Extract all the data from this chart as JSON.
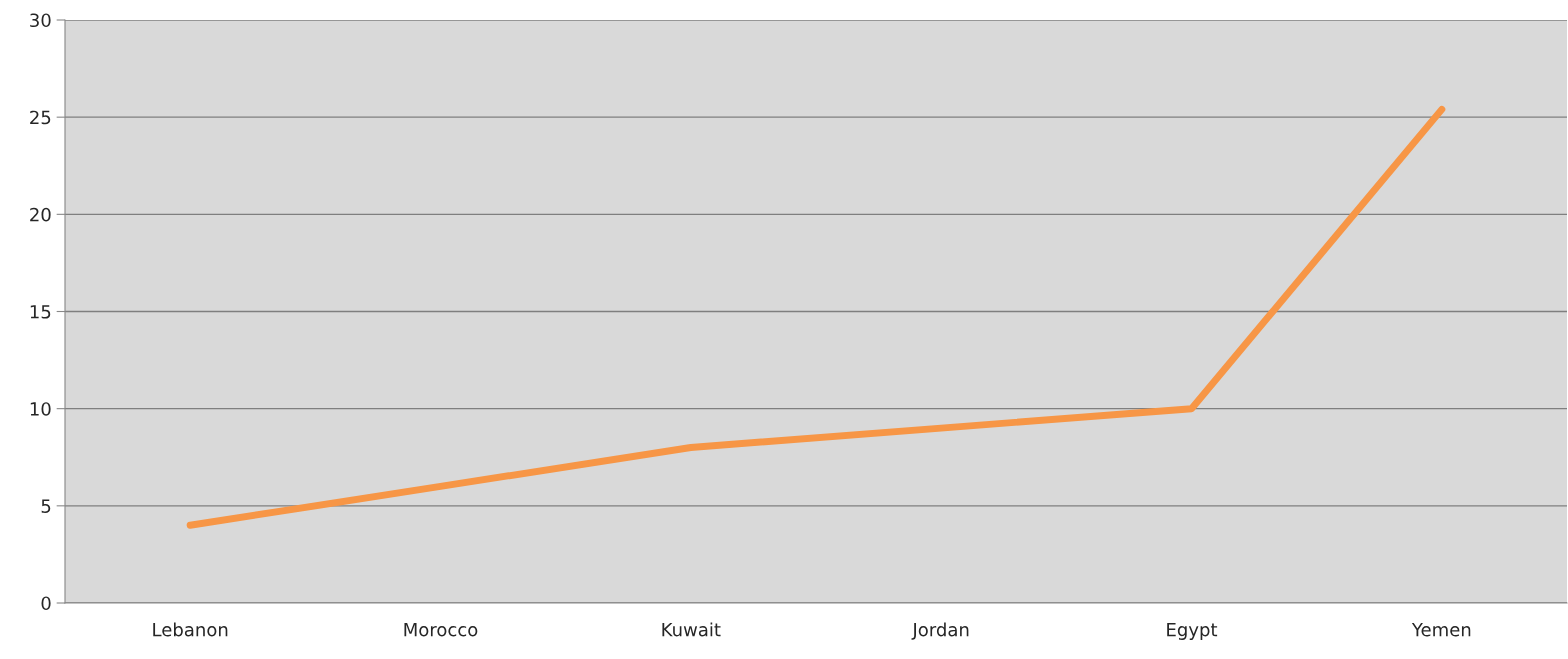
{
  "chart_data": {
    "type": "line",
    "categories": [
      "Lebanon",
      "Morocco",
      "Kuwait",
      "Jordan",
      "Egypt",
      "Yemen"
    ],
    "series": [
      {
        "color": "#f79646",
        "values": [
          4,
          6,
          8,
          9,
          10,
          25.4
        ]
      }
    ],
    "ylim": [
      0,
      30
    ],
    "yticks": [
      0,
      5,
      10,
      15,
      20,
      25,
      30
    ],
    "grid": "y",
    "legend": false,
    "marker": "none",
    "line_style": "solid"
  }
}
